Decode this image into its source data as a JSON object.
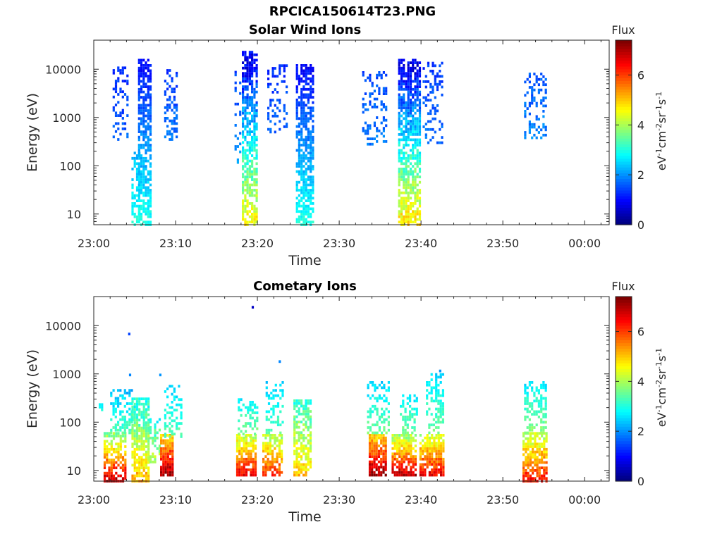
{
  "figure_title": "RPCICA150614T23.PNG",
  "chart_data": [
    {
      "type": "heatmap",
      "title": "Solar Wind Ions",
      "xlabel": "Time",
      "ylabel": "Energy (eV)",
      "x_ticks": [
        "23:00",
        "23:10",
        "23:20",
        "23:30",
        "23:40",
        "23:50",
        "00:00"
      ],
      "x_range_minutes": [
        0,
        63
      ],
      "y_ticks": [
        "10",
        "100",
        "1000",
        "10000"
      ],
      "y_scale": "log",
      "y_range": [
        6,
        40000
      ],
      "colorbar": {
        "title": "Flux",
        "unit": "eV-1cm-2sr-1s-1",
        "ticks": [
          "0",
          "2",
          "4",
          "6"
        ],
        "range": [
          0,
          7.4
        ]
      },
      "bursts": [
        {
          "t_start": 2.3,
          "t_end": 4.2,
          "e_lo": 350,
          "e_hi": 11000,
          "flux_lo": 1.2,
          "flux_hi": 1.6,
          "density": 0.32
        },
        {
          "t_start": 4.6,
          "t_end": 5.6,
          "e_lo": 6,
          "e_hi": 200,
          "flux_lo": 2.3,
          "flux_hi": 3.0,
          "density": 0.55
        },
        {
          "t_start": 5.4,
          "t_end": 7.0,
          "e_lo": 6,
          "e_hi": 17000,
          "flux_lo": 0.9,
          "flux_hi": 3.0,
          "density": 0.72
        },
        {
          "t_start": 8.6,
          "t_end": 10.2,
          "e_lo": 350,
          "e_hi": 10000,
          "flux_lo": 1.3,
          "flux_hi": 1.8,
          "density": 0.38
        },
        {
          "t_start": 17.2,
          "t_end": 17.8,
          "e_lo": 80,
          "e_hi": 10000,
          "flux_lo": 1.4,
          "flux_hi": 2.0,
          "density": 0.2
        },
        {
          "t_start": 18.1,
          "t_end": 19.9,
          "e_lo": 6,
          "e_hi": 24000,
          "flux_lo": 0.9,
          "flux_hi": 4.7,
          "density": 0.72
        },
        {
          "t_start": 21.2,
          "t_end": 23.6,
          "e_lo": 500,
          "e_hi": 12000,
          "flux_lo": 1.2,
          "flux_hi": 1.6,
          "density": 0.28
        },
        {
          "t_start": 24.7,
          "t_end": 26.7,
          "e_lo": 6,
          "e_hi": 12000,
          "flux_lo": 0.9,
          "flux_hi": 3.0,
          "density": 0.7
        },
        {
          "t_start": 32.8,
          "t_end": 35.8,
          "e_lo": 280,
          "e_hi": 9000,
          "flux_lo": 1.4,
          "flux_hi": 1.8,
          "density": 0.28
        },
        {
          "t_start": 37.2,
          "t_end": 39.8,
          "e_lo": 6,
          "e_hi": 17000,
          "flux_lo": 0.9,
          "flux_hi": 4.9,
          "density": 0.72
        },
        {
          "t_start": 40.2,
          "t_end": 42.6,
          "e_lo": 300,
          "e_hi": 15000,
          "flux_lo": 1.3,
          "flux_hi": 1.7,
          "density": 0.3
        },
        {
          "t_start": 52.6,
          "t_end": 55.2,
          "e_lo": 380,
          "e_hi": 9000,
          "flux_lo": 1.5,
          "flux_hi": 1.9,
          "density": 0.3
        }
      ]
    },
    {
      "type": "heatmap",
      "title": "Cometary Ions",
      "xlabel": "Time",
      "ylabel": "Energy (eV)",
      "x_ticks": [
        "23:00",
        "23:10",
        "23:20",
        "23:30",
        "23:40",
        "23:50",
        "00:00"
      ],
      "x_range_minutes": [
        0,
        63
      ],
      "y_ticks": [
        "10",
        "100",
        "1000",
        "10000"
      ],
      "y_scale": "log",
      "y_range": [
        6,
        40000
      ],
      "colorbar": {
        "title": "Flux",
        "unit": "eV-1cm-2sr-1s-1",
        "ticks": [
          "0",
          "2",
          "4",
          "6"
        ],
        "range": [
          0,
          7.4
        ]
      },
      "isolated_points": [
        {
          "t": 19.3,
          "e": 24000,
          "flux": 0.5
        },
        {
          "t": 4.2,
          "e": 6700,
          "flux": 1.4
        },
        {
          "t": 22.6,
          "e": 1800,
          "flux": 1.9
        },
        {
          "t": 4.3,
          "e": 950,
          "flux": 1.9
        },
        {
          "t": 8.0,
          "e": 950,
          "flux": 2.0
        },
        {
          "t": 42.2,
          "e": 1150,
          "flux": 2.0
        }
      ],
      "bursts": [
        {
          "t_start": 0.6,
          "t_end": 1.0,
          "e_lo": 180,
          "e_hi": 250,
          "flux_lo": 2.5,
          "flux_hi": 3.0,
          "density": 0.5
        },
        {
          "t_start": 1.2,
          "t_end": 4.0,
          "e_lo": 6,
          "e_hi": 60,
          "flux_lo": 3.8,
          "flux_hi": 7.0,
          "density": 0.75
        },
        {
          "t_start": 2.0,
          "t_end": 4.6,
          "e_lo": 60,
          "e_hi": 500,
          "flux_lo": 2.2,
          "flux_hi": 3.4,
          "density": 0.4
        },
        {
          "t_start": 4.6,
          "t_end": 6.8,
          "e_lo": 6,
          "e_hi": 320,
          "flux_lo": 3.0,
          "flux_hi": 5.2,
          "density": 0.75
        },
        {
          "t_start": 6.8,
          "t_end": 8.0,
          "e_lo": 15,
          "e_hi": 120,
          "flux_lo": 3.0,
          "flux_hi": 4.2,
          "density": 0.45
        },
        {
          "t_start": 8.1,
          "t_end": 9.6,
          "e_lo": 8,
          "e_hi": 60,
          "flux_lo": 5.0,
          "flux_hi": 7.2,
          "density": 0.85
        },
        {
          "t_start": 8.6,
          "t_end": 10.6,
          "e_lo": 50,
          "e_hi": 600,
          "flux_lo": 2.4,
          "flux_hi": 3.4,
          "density": 0.4
        },
        {
          "t_start": 17.4,
          "t_end": 19.8,
          "e_lo": 8,
          "e_hi": 60,
          "flux_lo": 4.2,
          "flux_hi": 6.6,
          "density": 0.8
        },
        {
          "t_start": 17.6,
          "t_end": 20.0,
          "e_lo": 50,
          "e_hi": 300,
          "flux_lo": 2.6,
          "flux_hi": 3.8,
          "density": 0.45
        },
        {
          "t_start": 20.6,
          "t_end": 23.0,
          "e_lo": 8,
          "e_hi": 60,
          "flux_lo": 4.0,
          "flux_hi": 6.2,
          "density": 0.75
        },
        {
          "t_start": 21.0,
          "t_end": 23.2,
          "e_lo": 60,
          "e_hi": 700,
          "flux_lo": 2.4,
          "flux_hi": 3.4,
          "density": 0.35
        },
        {
          "t_start": 24.4,
          "t_end": 26.4,
          "e_lo": 8,
          "e_hi": 300,
          "flux_lo": 3.2,
          "flux_hi": 5.0,
          "density": 0.7
        },
        {
          "t_start": 33.6,
          "t_end": 35.8,
          "e_lo": 8,
          "e_hi": 60,
          "flux_lo": 5.0,
          "flux_hi": 7.2,
          "density": 0.85
        },
        {
          "t_start": 33.4,
          "t_end": 36.2,
          "e_lo": 60,
          "e_hi": 700,
          "flux_lo": 2.4,
          "flux_hi": 3.6,
          "density": 0.4
        },
        {
          "t_start": 36.4,
          "t_end": 39.4,
          "e_lo": 8,
          "e_hi": 60,
          "flux_lo": 4.0,
          "flux_hi": 7.0,
          "density": 0.8
        },
        {
          "t_start": 37.4,
          "t_end": 39.4,
          "e_lo": 60,
          "e_hi": 400,
          "flux_lo": 2.6,
          "flux_hi": 3.6,
          "density": 0.45
        },
        {
          "t_start": 39.8,
          "t_end": 42.8,
          "e_lo": 8,
          "e_hi": 60,
          "flux_lo": 4.2,
          "flux_hi": 6.6,
          "density": 0.8
        },
        {
          "t_start": 40.6,
          "t_end": 42.8,
          "e_lo": 60,
          "e_hi": 1100,
          "flux_lo": 2.4,
          "flux_hi": 3.6,
          "density": 0.4
        },
        {
          "t_start": 52.4,
          "t_end": 55.4,
          "e_lo": 6,
          "e_hi": 60,
          "flux_lo": 4.2,
          "flux_hi": 6.4,
          "density": 0.8
        },
        {
          "t_start": 52.6,
          "t_end": 55.4,
          "e_lo": 60,
          "e_hi": 700,
          "flux_lo": 2.6,
          "flux_hi": 3.8,
          "density": 0.45
        }
      ]
    }
  ]
}
